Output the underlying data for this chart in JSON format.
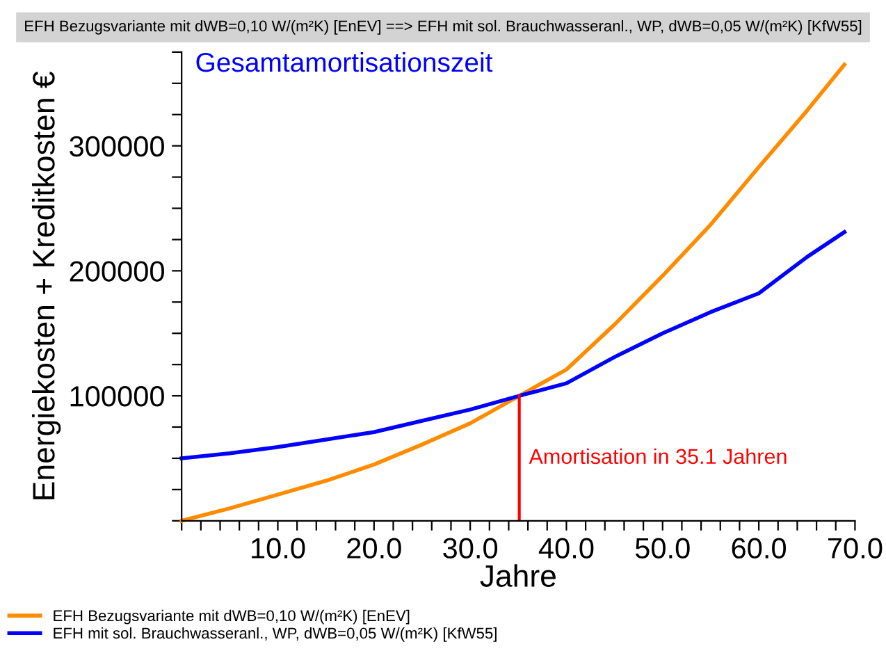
{
  "chart_data": {
    "type": "line",
    "title": "EFH Bezugsvariante mit dWB=0,10 W/(m²K) [EnEV] ==> EFH mit sol. Brauchwasseranl., WP, dWB=0,05 W/(m²K) [KfW55]",
    "subtitle": "Gesamtamortisationszeit",
    "xlabel": "Jahre",
    "ylabel": "Energiekosten + Kreditkosten €",
    "series": [
      {
        "name": "EFH Bezugsvariante mit dWB=0,10 W/(m²K) [EnEV]",
        "color": "#ff8c00",
        "x": [
          0,
          5,
          10,
          15,
          20,
          25,
          30,
          35.1,
          40,
          45,
          50,
          55,
          60,
          65,
          68.9
        ],
        "values": [
          0,
          10000,
          21000,
          32000,
          45000,
          61000,
          78000,
          100000,
          121000,
          157000,
          196000,
          237000,
          283000,
          328000,
          365000
        ]
      },
      {
        "name": "EFH mit sol. Brauchwasseranl., WP, dWB=0,05 W/(m²K) [KfW55]",
        "color": "#0000ff",
        "x": [
          0,
          5,
          10,
          15,
          20,
          25,
          30,
          35.1,
          40,
          45,
          50,
          55,
          60,
          65,
          68.9
        ],
        "values": [
          50000,
          54000,
          59000,
          65000,
          71000,
          80000,
          89000,
          100000,
          110000,
          131000,
          150000,
          167000,
          182000,
          211000,
          231000
        ]
      }
    ],
    "ref_lines": [
      {
        "axis": "x",
        "value": 35.1,
        "label": "Amortisation in 35.1 Jahren",
        "color": "#ff0000"
      }
    ],
    "xlim": [
      0,
      70
    ],
    "xticks": [
      {
        "value": 0,
        "label": null
      },
      {
        "value": 2,
        "label": null
      },
      {
        "value": 4,
        "label": null
      },
      {
        "value": 6,
        "label": null
      },
      {
        "value": 8,
        "label": null
      },
      {
        "value": 10,
        "label": "10.0"
      },
      {
        "value": 12,
        "label": null
      },
      {
        "value": 14,
        "label": null
      },
      {
        "value": 16,
        "label": null
      },
      {
        "value": 18,
        "label": null
      },
      {
        "value": 20,
        "label": "20.0"
      },
      {
        "value": 22,
        "label": null
      },
      {
        "value": 24,
        "label": null
      },
      {
        "value": 26,
        "label": null
      },
      {
        "value": 28,
        "label": null
      },
      {
        "value": 30,
        "label": "30.0"
      },
      {
        "value": 32,
        "label": null
      },
      {
        "value": 34,
        "label": null
      },
      {
        "value": 36,
        "label": null
      },
      {
        "value": 38,
        "label": null
      },
      {
        "value": 40,
        "label": "40.0"
      },
      {
        "value": 42,
        "label": null
      },
      {
        "value": 44,
        "label": null
      },
      {
        "value": 46,
        "label": null
      },
      {
        "value": 48,
        "label": null
      },
      {
        "value": 50,
        "label": "50.0"
      },
      {
        "value": 52,
        "label": null
      },
      {
        "value": 54,
        "label": null
      },
      {
        "value": 56,
        "label": null
      },
      {
        "value": 58,
        "label": null
      },
      {
        "value": 60,
        "label": "60.0"
      },
      {
        "value": 62,
        "label": null
      },
      {
        "value": 64,
        "label": null
      },
      {
        "value": 66,
        "label": null
      },
      {
        "value": 68,
        "label": null
      },
      {
        "value": 70,
        "label": "70.0"
      }
    ],
    "ylim": [
      0,
      375000
    ],
    "yticks": [
      {
        "value": 0,
        "label": null
      },
      {
        "value": 25000,
        "label": null
      },
      {
        "value": 50000,
        "label": null
      },
      {
        "value": 75000,
        "label": null
      },
      100000,
      {
        "value": 125000,
        "label": null
      },
      {
        "value": 150000,
        "label": null
      },
      {
        "value": 175000,
        "label": null
      },
      200000,
      {
        "value": 225000,
        "label": null
      },
      {
        "value": 250000,
        "label": null
      },
      {
        "value": 275000,
        "label": null
      },
      300000,
      {
        "value": 325000,
        "label": null
      },
      {
        "value": 350000,
        "label": null
      },
      {
        "value": 375000,
        "label": null
      }
    ],
    "grid": false,
    "legend": "bottom left",
    "marker": "none",
    "line_style": "solid"
  }
}
